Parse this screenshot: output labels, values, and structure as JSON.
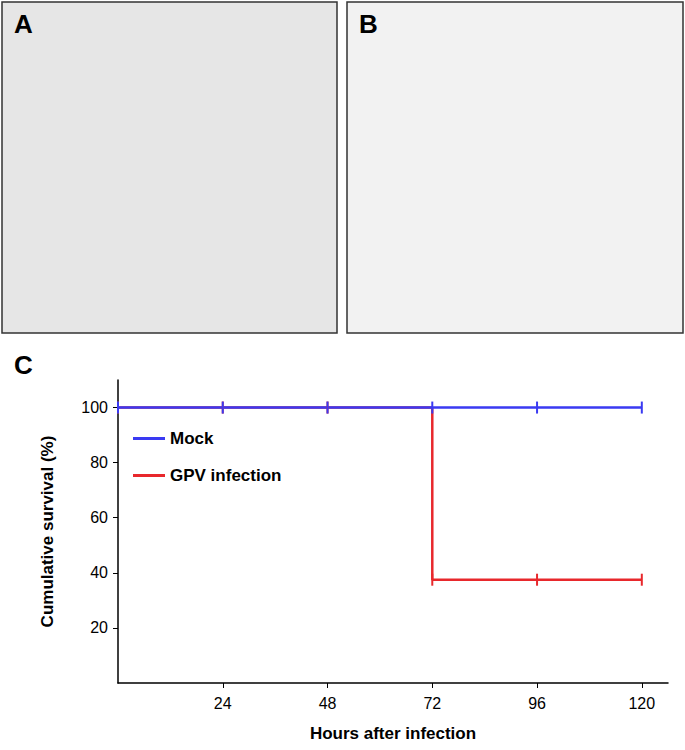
{
  "panels": [
    {
      "label": "A"
    },
    {
      "label": "B"
    }
  ],
  "chart_data": {
    "panel_label": "C",
    "type": "line",
    "xlabel": "Hours after infection",
    "ylabel": "Cumulative survival (%)",
    "x": [
      0,
      24,
      48,
      72,
      96,
      120
    ],
    "xlim": [
      0,
      126
    ],
    "xticks": [
      24,
      48,
      72,
      96,
      120
    ],
    "ylim": [
      0,
      110
    ],
    "yticks": [
      20,
      40,
      60,
      80,
      100
    ],
    "grid": false,
    "legend": "upper left",
    "line_style": "step",
    "marker": "vline",
    "series": [
      {
        "name": "Mock",
        "color": "#3a3af2",
        "values": [
          100,
          100,
          100,
          100,
          100,
          100
        ]
      },
      {
        "name": "GPV infection",
        "color": "#e8282c",
        "values": [
          100,
          100,
          100,
          37.5,
          37.5,
          37.5
        ]
      }
    ]
  }
}
